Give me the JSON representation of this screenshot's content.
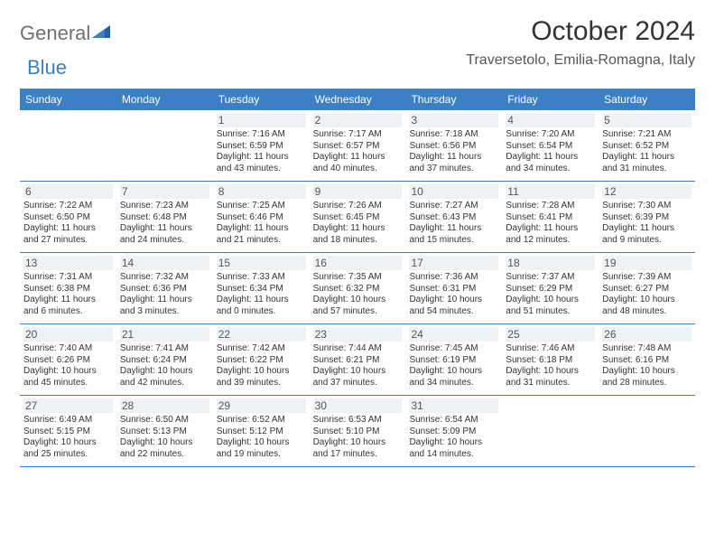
{
  "logo": {
    "part1": "General",
    "part2": "Blue"
  },
  "title": "October 2024",
  "location": "Traversetolo, Emilia-Romagna, Italy",
  "colors": {
    "header_bg": "#3b7fc4",
    "header_text": "#ffffff",
    "daynum_bg": "#eef2f5",
    "border": "#3b7fc4",
    "title_color": "#333333",
    "location_color": "#555555",
    "logo_gray": "#707070",
    "logo_blue": "#3b7fc4",
    "text_color": "#333333"
  },
  "day_headers": [
    "Sunday",
    "Monday",
    "Tuesday",
    "Wednesday",
    "Thursday",
    "Friday",
    "Saturday"
  ],
  "weeks": [
    [
      {
        "n": "",
        "sr": "",
        "ss": "",
        "dl1": "",
        "dl2": ""
      },
      {
        "n": "",
        "sr": "",
        "ss": "",
        "dl1": "",
        "dl2": ""
      },
      {
        "n": "1",
        "sr": "Sunrise: 7:16 AM",
        "ss": "Sunset: 6:59 PM",
        "dl1": "Daylight: 11 hours",
        "dl2": "and 43 minutes."
      },
      {
        "n": "2",
        "sr": "Sunrise: 7:17 AM",
        "ss": "Sunset: 6:57 PM",
        "dl1": "Daylight: 11 hours",
        "dl2": "and 40 minutes."
      },
      {
        "n": "3",
        "sr": "Sunrise: 7:18 AM",
        "ss": "Sunset: 6:56 PM",
        "dl1": "Daylight: 11 hours",
        "dl2": "and 37 minutes."
      },
      {
        "n": "4",
        "sr": "Sunrise: 7:20 AM",
        "ss": "Sunset: 6:54 PM",
        "dl1": "Daylight: 11 hours",
        "dl2": "and 34 minutes."
      },
      {
        "n": "5",
        "sr": "Sunrise: 7:21 AM",
        "ss": "Sunset: 6:52 PM",
        "dl1": "Daylight: 11 hours",
        "dl2": "and 31 minutes."
      }
    ],
    [
      {
        "n": "6",
        "sr": "Sunrise: 7:22 AM",
        "ss": "Sunset: 6:50 PM",
        "dl1": "Daylight: 11 hours",
        "dl2": "and 27 minutes."
      },
      {
        "n": "7",
        "sr": "Sunrise: 7:23 AM",
        "ss": "Sunset: 6:48 PM",
        "dl1": "Daylight: 11 hours",
        "dl2": "and 24 minutes."
      },
      {
        "n": "8",
        "sr": "Sunrise: 7:25 AM",
        "ss": "Sunset: 6:46 PM",
        "dl1": "Daylight: 11 hours",
        "dl2": "and 21 minutes."
      },
      {
        "n": "9",
        "sr": "Sunrise: 7:26 AM",
        "ss": "Sunset: 6:45 PM",
        "dl1": "Daylight: 11 hours",
        "dl2": "and 18 minutes."
      },
      {
        "n": "10",
        "sr": "Sunrise: 7:27 AM",
        "ss": "Sunset: 6:43 PM",
        "dl1": "Daylight: 11 hours",
        "dl2": "and 15 minutes."
      },
      {
        "n": "11",
        "sr": "Sunrise: 7:28 AM",
        "ss": "Sunset: 6:41 PM",
        "dl1": "Daylight: 11 hours",
        "dl2": "and 12 minutes."
      },
      {
        "n": "12",
        "sr": "Sunrise: 7:30 AM",
        "ss": "Sunset: 6:39 PM",
        "dl1": "Daylight: 11 hours",
        "dl2": "and 9 minutes."
      }
    ],
    [
      {
        "n": "13",
        "sr": "Sunrise: 7:31 AM",
        "ss": "Sunset: 6:38 PM",
        "dl1": "Daylight: 11 hours",
        "dl2": "and 6 minutes."
      },
      {
        "n": "14",
        "sr": "Sunrise: 7:32 AM",
        "ss": "Sunset: 6:36 PM",
        "dl1": "Daylight: 11 hours",
        "dl2": "and 3 minutes."
      },
      {
        "n": "15",
        "sr": "Sunrise: 7:33 AM",
        "ss": "Sunset: 6:34 PM",
        "dl1": "Daylight: 11 hours",
        "dl2": "and 0 minutes."
      },
      {
        "n": "16",
        "sr": "Sunrise: 7:35 AM",
        "ss": "Sunset: 6:32 PM",
        "dl1": "Daylight: 10 hours",
        "dl2": "and 57 minutes."
      },
      {
        "n": "17",
        "sr": "Sunrise: 7:36 AM",
        "ss": "Sunset: 6:31 PM",
        "dl1": "Daylight: 10 hours",
        "dl2": "and 54 minutes."
      },
      {
        "n": "18",
        "sr": "Sunrise: 7:37 AM",
        "ss": "Sunset: 6:29 PM",
        "dl1": "Daylight: 10 hours",
        "dl2": "and 51 minutes."
      },
      {
        "n": "19",
        "sr": "Sunrise: 7:39 AM",
        "ss": "Sunset: 6:27 PM",
        "dl1": "Daylight: 10 hours",
        "dl2": "and 48 minutes."
      }
    ],
    [
      {
        "n": "20",
        "sr": "Sunrise: 7:40 AM",
        "ss": "Sunset: 6:26 PM",
        "dl1": "Daylight: 10 hours",
        "dl2": "and 45 minutes."
      },
      {
        "n": "21",
        "sr": "Sunrise: 7:41 AM",
        "ss": "Sunset: 6:24 PM",
        "dl1": "Daylight: 10 hours",
        "dl2": "and 42 minutes."
      },
      {
        "n": "22",
        "sr": "Sunrise: 7:42 AM",
        "ss": "Sunset: 6:22 PM",
        "dl1": "Daylight: 10 hours",
        "dl2": "and 39 minutes."
      },
      {
        "n": "23",
        "sr": "Sunrise: 7:44 AM",
        "ss": "Sunset: 6:21 PM",
        "dl1": "Daylight: 10 hours",
        "dl2": "and 37 minutes."
      },
      {
        "n": "24",
        "sr": "Sunrise: 7:45 AM",
        "ss": "Sunset: 6:19 PM",
        "dl1": "Daylight: 10 hours",
        "dl2": "and 34 minutes."
      },
      {
        "n": "25",
        "sr": "Sunrise: 7:46 AM",
        "ss": "Sunset: 6:18 PM",
        "dl1": "Daylight: 10 hours",
        "dl2": "and 31 minutes."
      },
      {
        "n": "26",
        "sr": "Sunrise: 7:48 AM",
        "ss": "Sunset: 6:16 PM",
        "dl1": "Daylight: 10 hours",
        "dl2": "and 28 minutes."
      }
    ],
    [
      {
        "n": "27",
        "sr": "Sunrise: 6:49 AM",
        "ss": "Sunset: 5:15 PM",
        "dl1": "Daylight: 10 hours",
        "dl2": "and 25 minutes."
      },
      {
        "n": "28",
        "sr": "Sunrise: 6:50 AM",
        "ss": "Sunset: 5:13 PM",
        "dl1": "Daylight: 10 hours",
        "dl2": "and 22 minutes."
      },
      {
        "n": "29",
        "sr": "Sunrise: 6:52 AM",
        "ss": "Sunset: 5:12 PM",
        "dl1": "Daylight: 10 hours",
        "dl2": "and 19 minutes."
      },
      {
        "n": "30",
        "sr": "Sunrise: 6:53 AM",
        "ss": "Sunset: 5:10 PM",
        "dl1": "Daylight: 10 hours",
        "dl2": "and 17 minutes."
      },
      {
        "n": "31",
        "sr": "Sunrise: 6:54 AM",
        "ss": "Sunset: 5:09 PM",
        "dl1": "Daylight: 10 hours",
        "dl2": "and 14 minutes."
      },
      {
        "n": "",
        "sr": "",
        "ss": "",
        "dl1": "",
        "dl2": ""
      },
      {
        "n": "",
        "sr": "",
        "ss": "",
        "dl1": "",
        "dl2": ""
      }
    ]
  ]
}
